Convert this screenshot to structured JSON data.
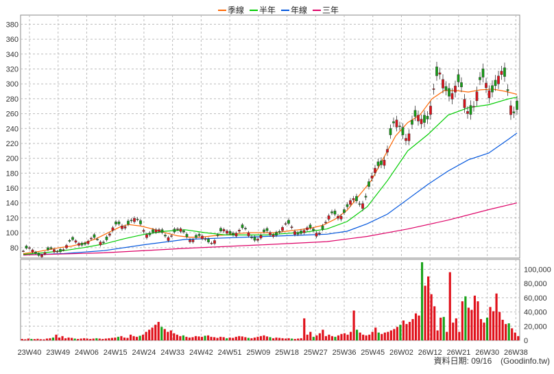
{
  "chart_data": [
    {
      "type": "candlestick",
      "legend": [
        {
          "name": "季線",
          "color": "#ff6600"
        },
        {
          "name": "半年",
          "color": "#00cc00"
        },
        {
          "name": "年線",
          "color": "#0055dd"
        },
        {
          "name": "三年",
          "color": "#dd0066"
        }
      ],
      "y_ticks": [
        80,
        100,
        120,
        140,
        160,
        180,
        200,
        220,
        240,
        260,
        280,
        300,
        320,
        340,
        360,
        380
      ],
      "ylim": [
        66,
        385
      ],
      "grid": true,
      "series": [
        {
          "name": "季線",
          "color": "#ff6600",
          "points": [
            [
              0,
              72
            ],
            [
              3,
              74
            ],
            [
              6,
              77
            ],
            [
              9,
              80
            ],
            [
              12,
              82
            ],
            [
              15,
              86
            ],
            [
              18,
              92
            ],
            [
              21,
              100
            ],
            [
              24,
              108
            ],
            [
              26,
              111
            ],
            [
              29,
              109
            ],
            [
              32,
              105
            ],
            [
              35,
              100
            ],
            [
              38,
              96
            ],
            [
              41,
              94
            ],
            [
              44,
              94
            ],
            [
              47,
              96
            ],
            [
              50,
              97
            ],
            [
              53,
              99
            ],
            [
              56,
              100
            ],
            [
              59,
              100
            ],
            [
              62,
              100
            ],
            [
              65,
              102
            ],
            [
              68,
              104
            ],
            [
              71,
              106
            ],
            [
              74,
              110
            ],
            [
              77,
              118
            ],
            [
              80,
              130
            ],
            [
              83,
              150
            ],
            [
              86,
              170
            ],
            [
              89,
              200
            ],
            [
              92,
              230
            ],
            [
              95,
              248
            ],
            [
              98,
              258
            ],
            [
              101,
              280
            ],
            [
              104,
              291
            ],
            [
              107,
              291
            ],
            [
              110,
              289
            ],
            [
              113,
              292
            ],
            [
              116,
              293
            ],
            [
              119,
              290
            ],
            [
              122,
              286
            ]
          ]
        },
        {
          "name": "半年",
          "color": "#00cc00",
          "points": [
            [
              0,
              71
            ],
            [
              5,
              73
            ],
            [
              10,
              76
            ],
            [
              15,
              80
            ],
            [
              20,
              85
            ],
            [
              25,
              92
            ],
            [
              30,
              98
            ],
            [
              35,
              102
            ],
            [
              40,
              104
            ],
            [
              45,
              100
            ],
            [
              50,
              97
            ],
            [
              55,
              97
            ],
            [
              60,
              97
            ],
            [
              65,
              99
            ],
            [
              70,
              101
            ],
            [
              75,
              105
            ],
            [
              80,
              115
            ],
            [
              85,
              135
            ],
            [
              90,
              170
            ],
            [
              95,
              210
            ],
            [
              100,
              232
            ],
            [
              105,
              258
            ],
            [
              110,
              268
            ],
            [
              115,
              272
            ],
            [
              120,
              280
            ],
            [
              122,
              282
            ]
          ]
        },
        {
          "name": "年線",
          "color": "#0055dd",
          "points": [
            [
              0,
              70
            ],
            [
              10,
              72
            ],
            [
              20,
              76
            ],
            [
              30,
              84
            ],
            [
              40,
              91
            ],
            [
              50,
              93
            ],
            [
              60,
              95
            ],
            [
              70,
              97
            ],
            [
              75,
              98
            ],
            [
              80,
              102
            ],
            [
              85,
              112
            ],
            [
              90,
              125
            ],
            [
              95,
              145
            ],
            [
              100,
              165
            ],
            [
              105,
              183
            ],
            [
              110,
              198
            ],
            [
              115,
              207
            ],
            [
              120,
              226
            ],
            [
              122,
              234
            ]
          ]
        },
        {
          "name": "三年",
          "color": "#dd0066",
          "points": [
            [
              0,
              70
            ],
            [
              20,
              73
            ],
            [
              40,
              79
            ],
            [
              60,
              84
            ],
            [
              75,
              88
            ],
            [
              85,
              95
            ],
            [
              95,
              105
            ],
            [
              105,
              117
            ],
            [
              115,
              131
            ],
            [
              122,
              140
            ]
          ]
        }
      ]
    },
    {
      "type": "bar",
      "y_ticks_labels": [
        "0",
        "20,000",
        "40,000",
        "60,000",
        "80,000",
        "100,000"
      ],
      "y_ticks": [
        0,
        20000,
        40000,
        60000,
        80000,
        100000
      ],
      "ylim": [
        0,
        114000
      ],
      "x_tick_labels": [
        "23W40",
        "23W49",
        "24W06",
        "24W15",
        "24W24",
        "24W33",
        "24W42",
        "24W51",
        "25W09",
        "25W18",
        "25W27",
        "25W36",
        "25W45",
        "26W02",
        "26W12",
        "26W21",
        "26W30",
        "26W38"
      ],
      "volume": [
        2000,
        1500,
        2500,
        2000,
        1800,
        2200,
        1600,
        1400,
        2500,
        3000,
        4000,
        8000,
        4000,
        6000,
        3000,
        4000,
        3500,
        2500,
        2000,
        2500,
        3000,
        2500,
        2000,
        2500,
        3000,
        2500,
        2000,
        2500,
        3000,
        3500,
        4000,
        5000,
        6000,
        4000,
        3500,
        8000,
        6000,
        5000,
        6500,
        8000,
        12000,
        15000,
        18000,
        22000,
        26000,
        19000,
        16000,
        12000,
        14000,
        10000,
        8000,
        6000,
        7000,
        5000,
        4000,
        4500,
        6000,
        5500,
        5000,
        6500,
        7000,
        5000,
        4500,
        3500,
        5000,
        4500,
        3000,
        4000,
        3500,
        5000,
        6000,
        5500,
        4500,
        3500,
        3000,
        4000,
        5000,
        6000,
        7000,
        5500,
        4500,
        3000,
        4000,
        3500,
        3000,
        2500,
        3000,
        2500,
        2000,
        2500,
        3000,
        31000,
        8000,
        12000,
        5000,
        7000,
        10000,
        15000,
        6000,
        8000,
        6000,
        5000,
        7000,
        9000,
        10000,
        8000,
        12000,
        42000,
        15000,
        11000,
        8000,
        7000,
        8000,
        12000,
        18000,
        11000,
        9000,
        11000,
        12000,
        14000,
        16000,
        19000,
        22000,
        28000,
        23000,
        26000,
        30000,
        38000,
        35000,
        110000,
        77000,
        90000,
        65000,
        48000,
        14000,
        32000,
        33000,
        12000,
        96000,
        25000,
        31000,
        12000,
        55000,
        62000,
        46000,
        43000,
        63000,
        55000,
        30000,
        25000,
        32000,
        47000,
        41000,
        66000,
        40000,
        29000,
        23000,
        24000,
        17000,
        11000,
        6000
      ],
      "volume_colors": "red-dominant"
    }
  ],
  "footer": {
    "date_label": "資料日期: 09/16",
    "source_label": "(Goodinfo.tw)"
  }
}
